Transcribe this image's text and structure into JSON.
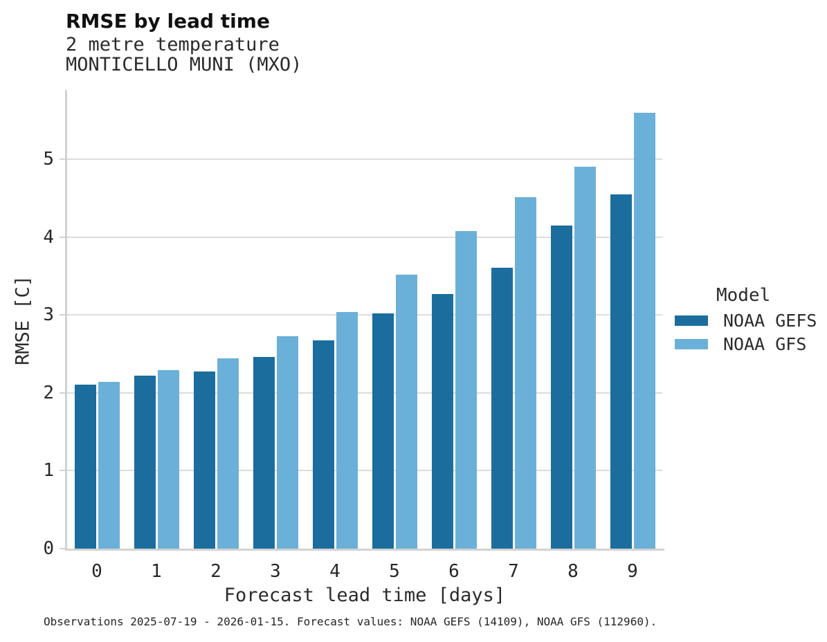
{
  "header": {
    "title": "RMSE by lead time",
    "subtitle_line1": "2 metre temperature",
    "subtitle_line2": "MONTICELLO MUNI (MXO)"
  },
  "chart_data": {
    "type": "bar",
    "title": "RMSE by lead time",
    "subtitle": "2 metre temperature — MONTICELLO MUNI (MXO)",
    "categories": [
      "0",
      "1",
      "2",
      "3",
      "4",
      "5",
      "6",
      "7",
      "8",
      "9"
    ],
    "series": [
      {
        "name": "NOAA GEFS",
        "color": "#1a6d9d",
        "values": [
          2.11,
          2.22,
          2.27,
          2.46,
          2.67,
          3.02,
          3.27,
          3.61,
          4.15,
          4.55
        ]
      },
      {
        "name": "NOAA GFS",
        "color": "#6bb0d8",
        "values": [
          2.14,
          2.29,
          2.44,
          2.73,
          3.04,
          3.52,
          4.08,
          4.51,
          4.9,
          5.6
        ]
      }
    ],
    "xlabel": "Forecast lead time [days]",
    "ylabel": "RMSE [C]",
    "ylim": [
      0,
      5.89
    ],
    "yticks": [
      0,
      1,
      2,
      3,
      4,
      5
    ],
    "grid": true,
    "legend_position": "right",
    "legend_title": "Model"
  },
  "axes": {
    "xlabel": "Forecast lead time [days]",
    "ylabel": "RMSE [C]"
  },
  "legend": {
    "title": "Model",
    "items": [
      {
        "label": "NOAA GEFS",
        "color": "#1a6d9d"
      },
      {
        "label": "NOAA GFS",
        "color": "#6bb0d8"
      }
    ]
  },
  "caption": "Observations 2025-07-19 - 2026-01-15. Forecast values: NOAA GEFS (14109), NOAA GFS (112960)."
}
